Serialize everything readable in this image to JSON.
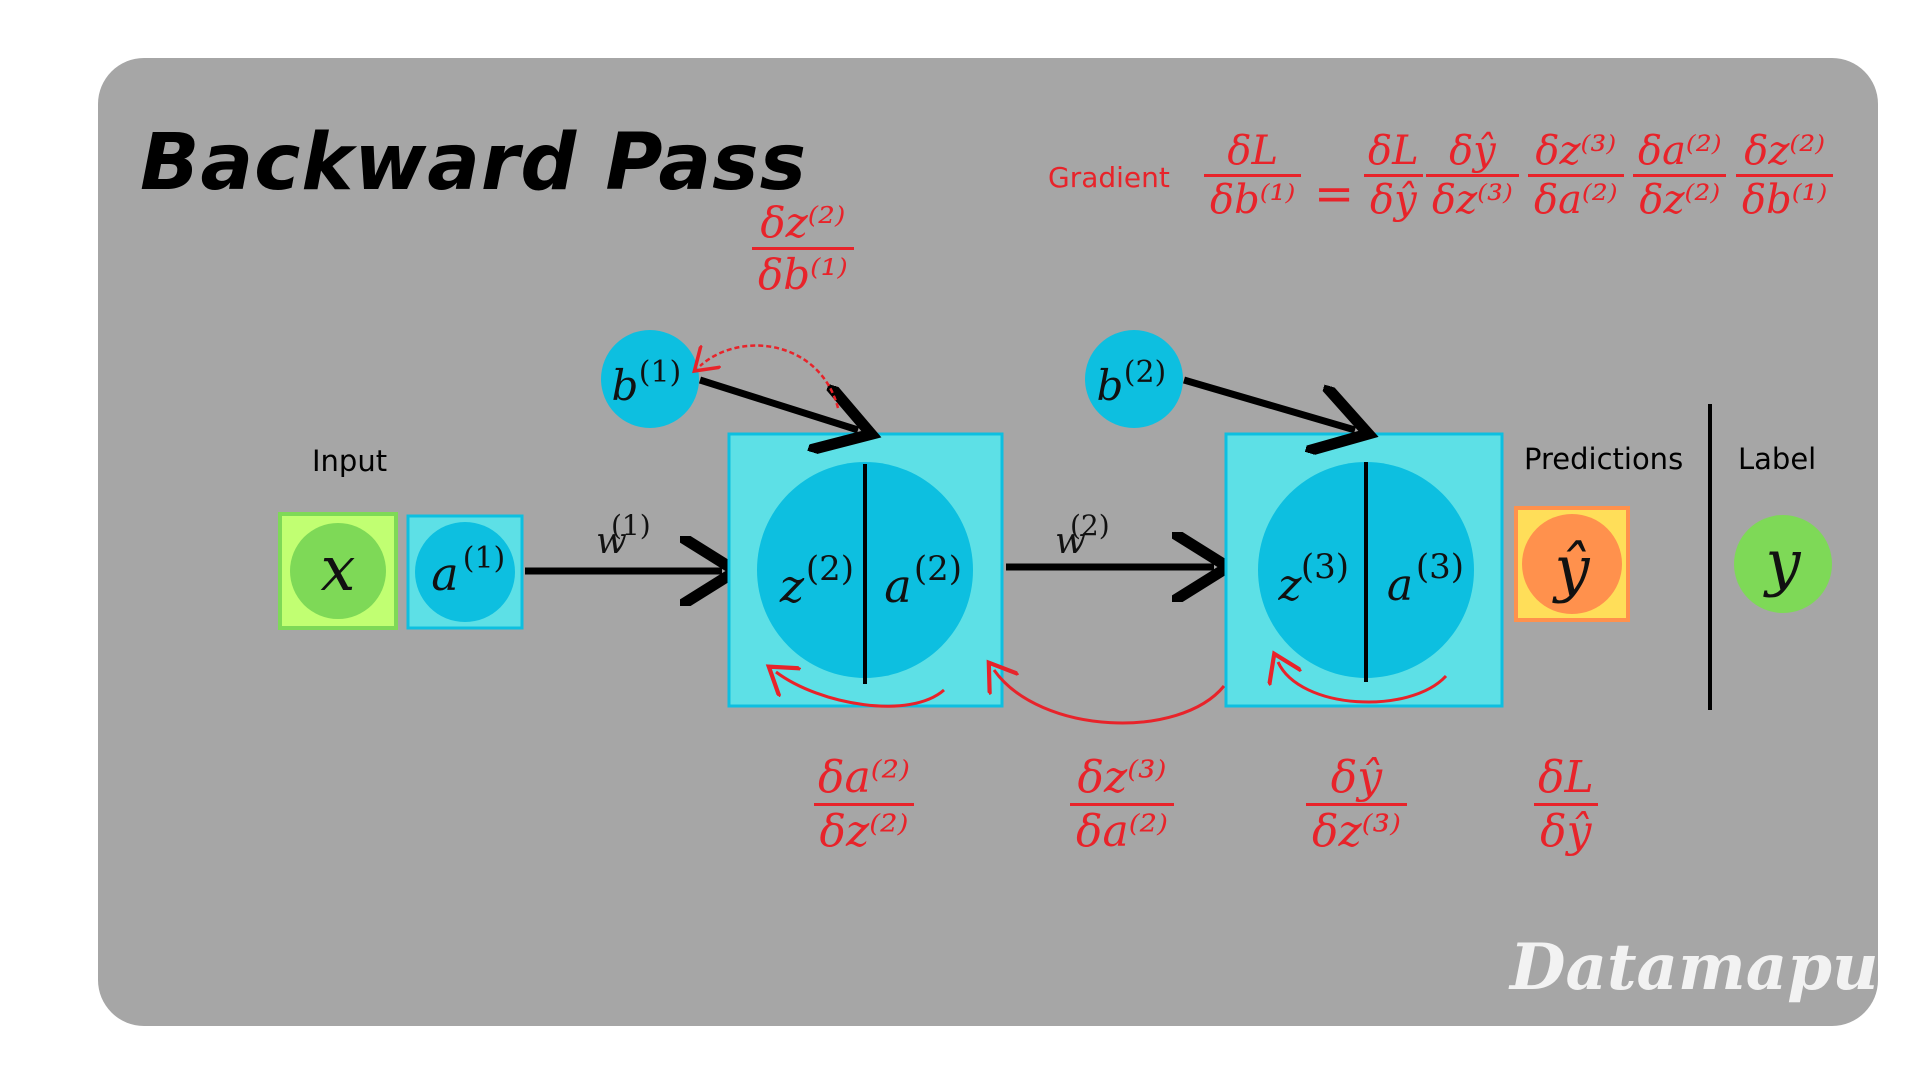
{
  "title": "Backward Pass",
  "watermark": "Datamapu",
  "labels": {
    "input": "Input",
    "predictions": "Predictions",
    "label": "Label",
    "gradient": "Gradient"
  },
  "nodes": {
    "x": "x",
    "a1": "a",
    "a1_sup": "(1)",
    "b1": "b",
    "b1_sup": "(1)",
    "b2": "b",
    "b2_sup": "(2)",
    "z2": "z",
    "z2_sup": "(2)",
    "a2": "a",
    "a2_sup": "(2)",
    "z3": "z",
    "z3_sup": "(3)",
    "a3": "a",
    "a3_sup": "(3)",
    "yhat": "ŷ",
    "y": "y"
  },
  "weights": {
    "w1": "w",
    "w1_sup": "(1)",
    "w2": "w",
    "w2_sup": "(2)"
  },
  "gradient_equation": {
    "lhs": {
      "num": "δL",
      "den": "δb⁽¹⁾"
    },
    "equals": "=",
    "rhs": [
      {
        "num": "δL",
        "den": "δŷ"
      },
      {
        "num": "δŷ",
        "den": "δz⁽³⁾"
      },
      {
        "num": "δz⁽³⁾",
        "den": "δa⁽²⁾"
      },
      {
        "num": "δa⁽²⁾",
        "den": "δz⁽²⁾"
      },
      {
        "num": "δz⁽²⁾",
        "den": "δb⁽¹⁾"
      }
    ]
  },
  "local_gradients": {
    "dz2_db1": {
      "num": "δz⁽²⁾",
      "den": "δb⁽¹⁾"
    },
    "da2_dz2": {
      "num": "δa⁽²⁾",
      "den": "δz⁽²⁾"
    },
    "dz3_da2": {
      "num": "δz⁽³⁾",
      "den": "δa⁽²⁾"
    },
    "dyhat_dz3": {
      "num": "δŷ",
      "den": "δz⁽³⁾"
    },
    "dL_dyhat": {
      "num": "δL",
      "den": "δŷ"
    }
  },
  "colors": {
    "background": "#a6a6a6",
    "cyan_box": "#5de0e6",
    "cyan_node": "#0dbfe0",
    "green_box": "#c1ff72",
    "green_node": "#7ed957",
    "orange_box": "#ffde59",
    "orange_node": "#ff914d",
    "red": "#e8232a"
  }
}
